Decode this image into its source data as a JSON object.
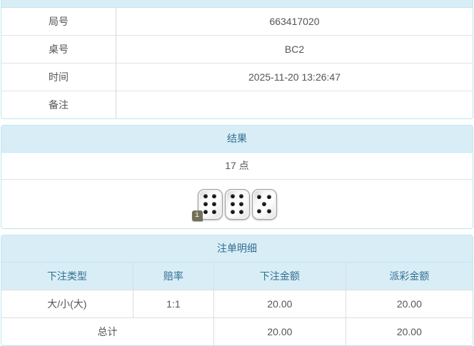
{
  "colors": {
    "panel_border": "#bce8f1",
    "heading_bg": "#d9edf7",
    "heading_text": "#31708f",
    "body_text": "#555555",
    "odds_red": "#dc3c3c"
  },
  "info_table": {
    "rows": [
      {
        "label": "局号",
        "value": "663417020"
      },
      {
        "label": "桌号",
        "value": "BC2"
      },
      {
        "label": "时间",
        "value": "2025-11-20 13:26:47"
      },
      {
        "label": "备注",
        "value": ""
      }
    ]
  },
  "result_panel": {
    "title": "结果",
    "points_text": "17 点",
    "dice": [
      6,
      6,
      5
    ],
    "info_badge": "i"
  },
  "bets_panel": {
    "title": "注单明细",
    "columns": [
      "下注类型",
      "赔率",
      "下注金额",
      "派彩金额"
    ],
    "rows": [
      {
        "bet_type": "大/小(大)",
        "odds": "1:1",
        "bet_amount": "20.00",
        "payout": "20.00"
      }
    ],
    "total": {
      "label": "总计",
      "bet_amount": "20.00",
      "payout": "20.00"
    }
  }
}
